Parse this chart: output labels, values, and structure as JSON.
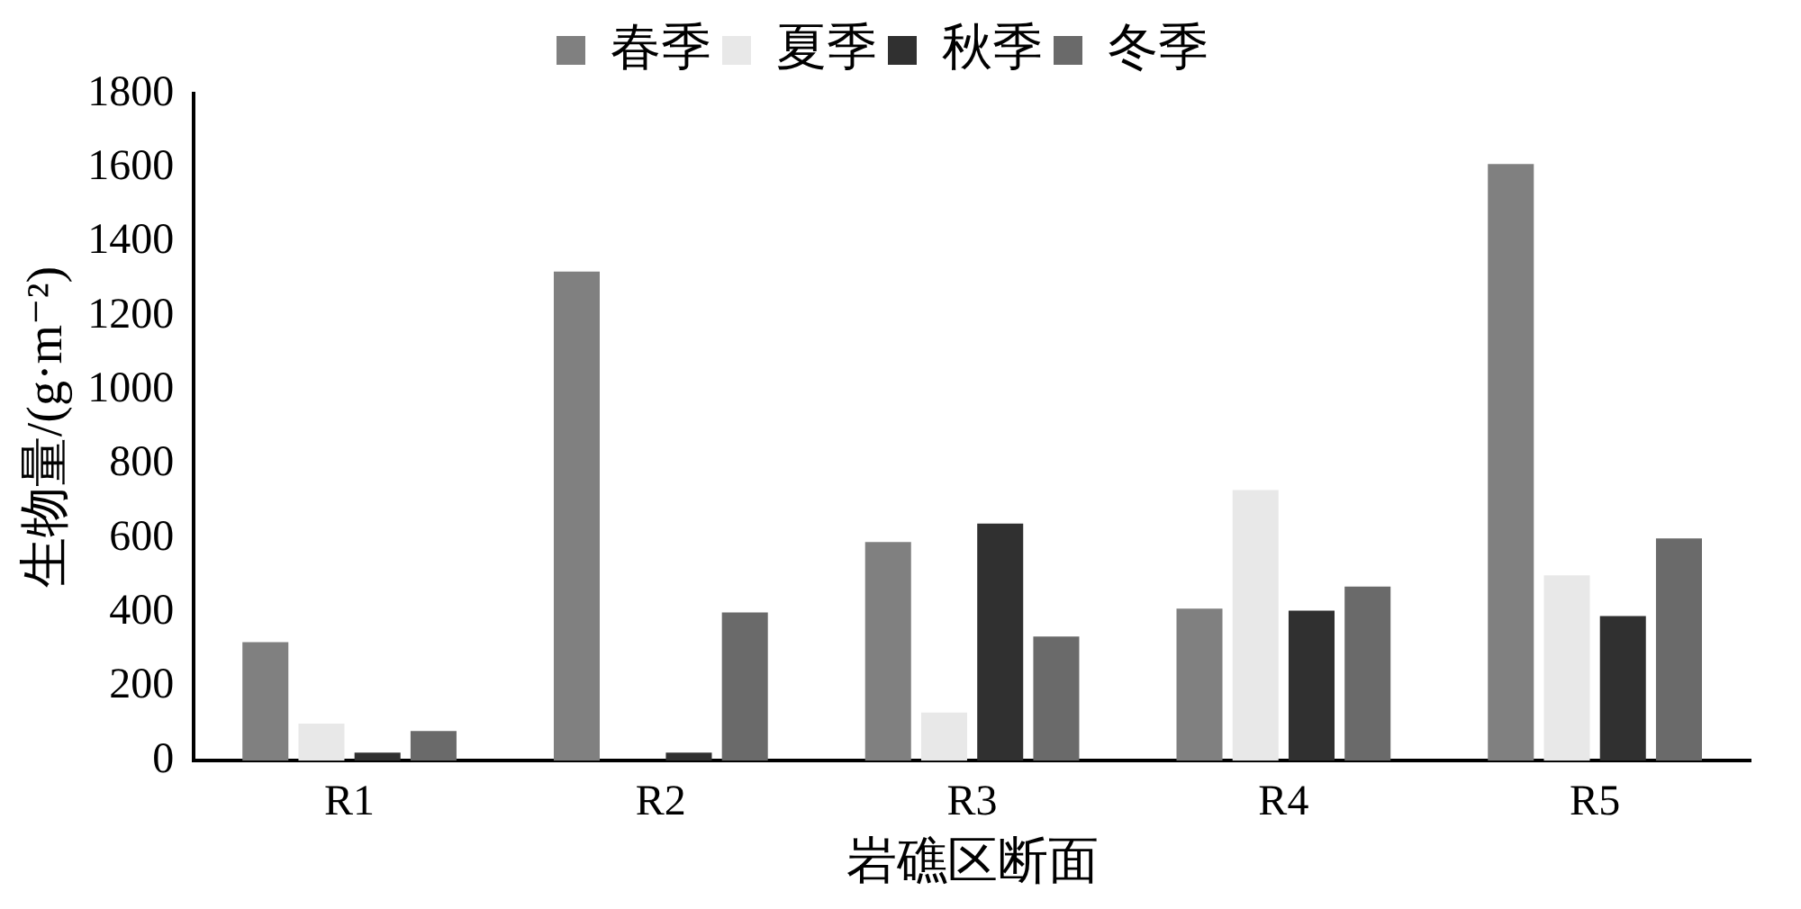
{
  "chart_data": {
    "type": "bar",
    "xlabel": "岩礁区断面",
    "ylabel": "生物量/(g·m⁻²)",
    "categories": [
      "R1",
      "R2",
      "R3",
      "R4",
      "R5"
    ],
    "series": [
      {
        "name": "春季",
        "color": "#808080",
        "values": [
          320,
          1320,
          590,
          410,
          1610
        ]
      },
      {
        "name": "夏季",
        "color": "#e8e8e8",
        "values": [
          100,
          0,
          130,
          730,
          500
        ]
      },
      {
        "name": "秋季",
        "color": "#303030",
        "values": [
          22,
          22,
          640,
          405,
          390
        ]
      },
      {
        "name": "冬季",
        "color": "#6a6a6a",
        "values": [
          80,
          400,
          335,
          470,
          600
        ]
      }
    ],
    "ylim": [
      0,
      1800
    ],
    "yticks": [
      0,
      200,
      400,
      600,
      800,
      1000,
      1200,
      1400,
      1600,
      1800
    ],
    "grid": false,
    "legend": "top"
  }
}
